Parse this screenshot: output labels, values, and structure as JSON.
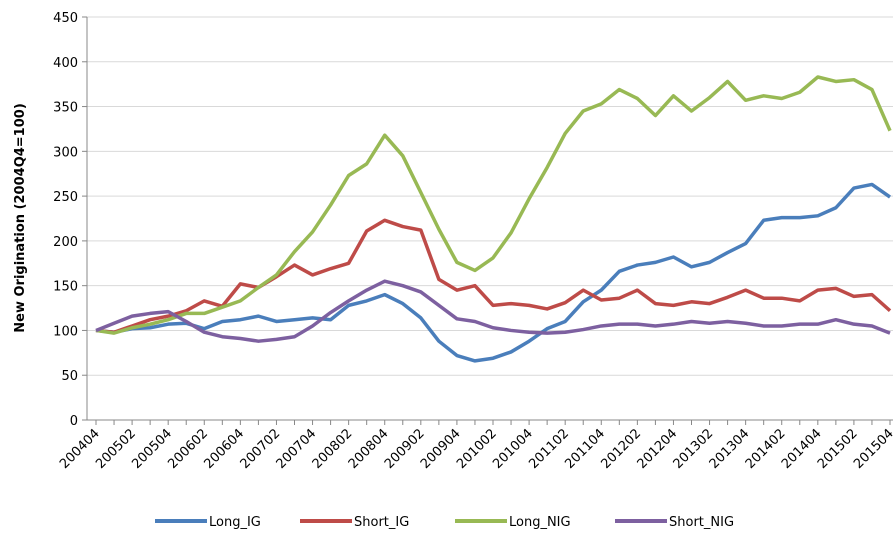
{
  "chart_data": {
    "type": "line",
    "ylabel": "New Origination (2004Q4=100)",
    "categories": [
      "200404",
      null,
      "200502",
      null,
      "200504",
      null,
      "200602",
      null,
      "200604",
      null,
      "200702",
      null,
      "200704",
      null,
      "200802",
      null,
      "200804",
      null,
      "200902",
      null,
      "200904",
      null,
      "201002",
      null,
      "201004",
      null,
      "201102",
      null,
      "201104",
      null,
      "201202",
      null,
      "201204",
      null,
      "201302",
      null,
      "201304",
      null,
      "201402",
      null,
      "201404",
      null,
      "201502",
      null,
      "201504"
    ],
    "series": [
      {
        "name": "Long_IG",
        "color": "#4a7ebb",
        "values": [
          100,
          98,
          102,
          103,
          107,
          108,
          102,
          110,
          112,
          116,
          110,
          112,
          114,
          112,
          128,
          133,
          140,
          130,
          114,
          88,
          72,
          66,
          69,
          76,
          88,
          102,
          110,
          132,
          145,
          166,
          173,
          176,
          182,
          171,
          176,
          187,
          197,
          223,
          226,
          226,
          228,
          237,
          259,
          263,
          249
        ]
      },
      {
        "name": "Short_IG",
        "color": "#be4b48",
        "values": [
          100,
          98,
          105,
          112,
          116,
          122,
          133,
          127,
          152,
          148,
          160,
          173,
          162,
          169,
          175,
          211,
          223,
          216,
          212,
          157,
          145,
          150,
          128,
          130,
          128,
          124,
          131,
          145,
          134,
          136,
          145,
          130,
          128,
          132,
          130,
          137,
          145,
          136,
          136,
          133,
          145,
          147,
          138,
          140,
          122
        ]
      },
      {
        "name": "Long_NIG",
        "color": "#98b954",
        "values": [
          100,
          97,
          103,
          107,
          112,
          119,
          119,
          126,
          133,
          148,
          162,
          188,
          210,
          240,
          273,
          286,
          318,
          295,
          254,
          213,
          176,
          167,
          181,
          209,
          247,
          282,
          320,
          345,
          353,
          369,
          359,
          340,
          362,
          345,
          360,
          378,
          357,
          362,
          359,
          366,
          383,
          378,
          380,
          369,
          323
        ]
      },
      {
        "name": "Short_NIG",
        "color": "#7d60a0",
        "values": [
          100,
          108,
          116,
          119,
          121,
          110,
          98,
          93,
          91,
          88,
          90,
          93,
          105,
          120,
          133,
          145,
          155,
          150,
          143,
          128,
          113,
          110,
          103,
          100,
          98,
          97,
          98,
          101,
          105,
          107,
          107,
          105,
          107,
          110,
          108,
          110,
          108,
          105,
          105,
          107,
          107,
          112,
          107,
          105,
          97
        ]
      }
    ],
    "ylim": [
      0,
      450
    ],
    "yticks": [
      0,
      50,
      100,
      150,
      200,
      250,
      300,
      350,
      400,
      450
    ],
    "grid": true
  }
}
